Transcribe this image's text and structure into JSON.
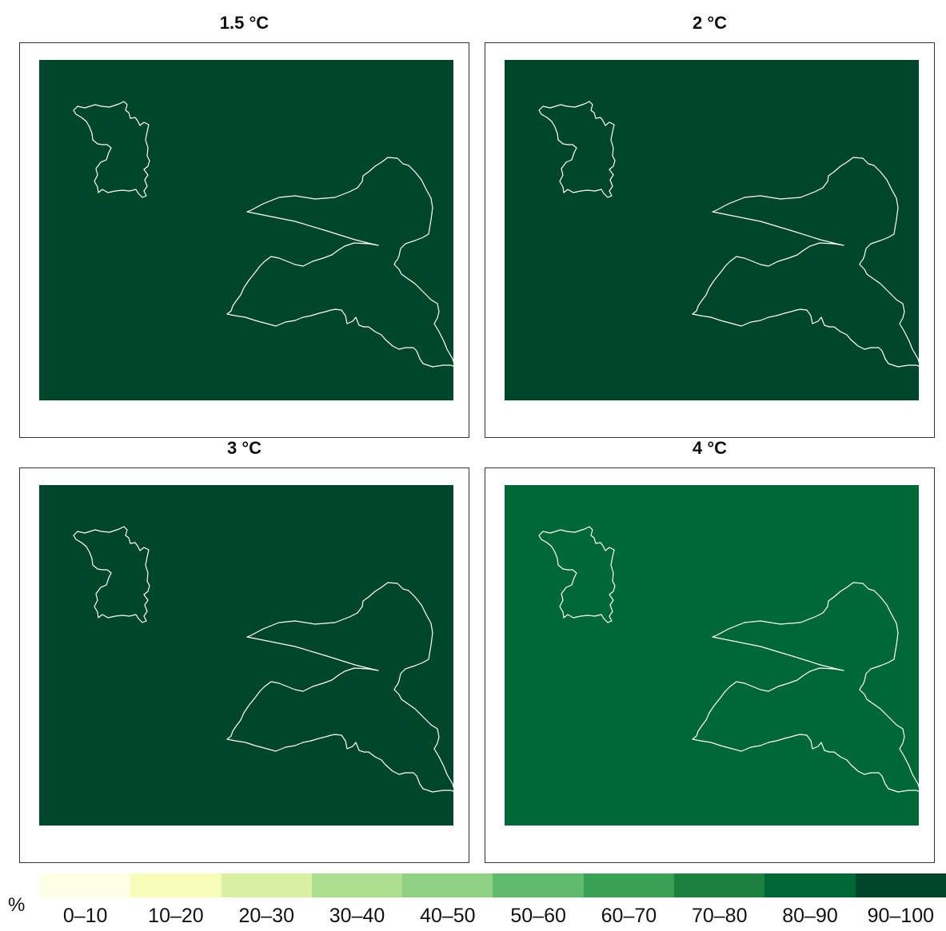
{
  "panels": [
    {
      "title": "1.5 °C",
      "value_class": "90–100",
      "fill": "#00462a"
    },
    {
      "title": "2 °C",
      "value_class": "90–100",
      "fill": "#00462a"
    },
    {
      "title": "3 °C",
      "value_class": "90–100",
      "fill": "#00462a"
    },
    {
      "title": "4 °C",
      "value_class": "80–90",
      "fill": "#006837"
    }
  ],
  "legend": {
    "unit": "%",
    "classes": [
      {
        "label": "0–10",
        "color": "#ffffe5"
      },
      {
        "label": "10–20",
        "color": "#f7fcb9"
      },
      {
        "label": "20–30",
        "color": "#d9f0a3"
      },
      {
        "label": "30–40",
        "color": "#addd8e"
      },
      {
        "label": "40–50",
        "color": "#8fd085"
      },
      {
        "label": "50–60",
        "color": "#5fba6d"
      },
      {
        "label": "60–70",
        "color": "#3aa056"
      },
      {
        "label": "70–80",
        "color": "#1d7f40"
      },
      {
        "label": "80–90",
        "color": "#006837"
      },
      {
        "label": "90–100",
        "color": "#00462a"
      }
    ]
  }
}
